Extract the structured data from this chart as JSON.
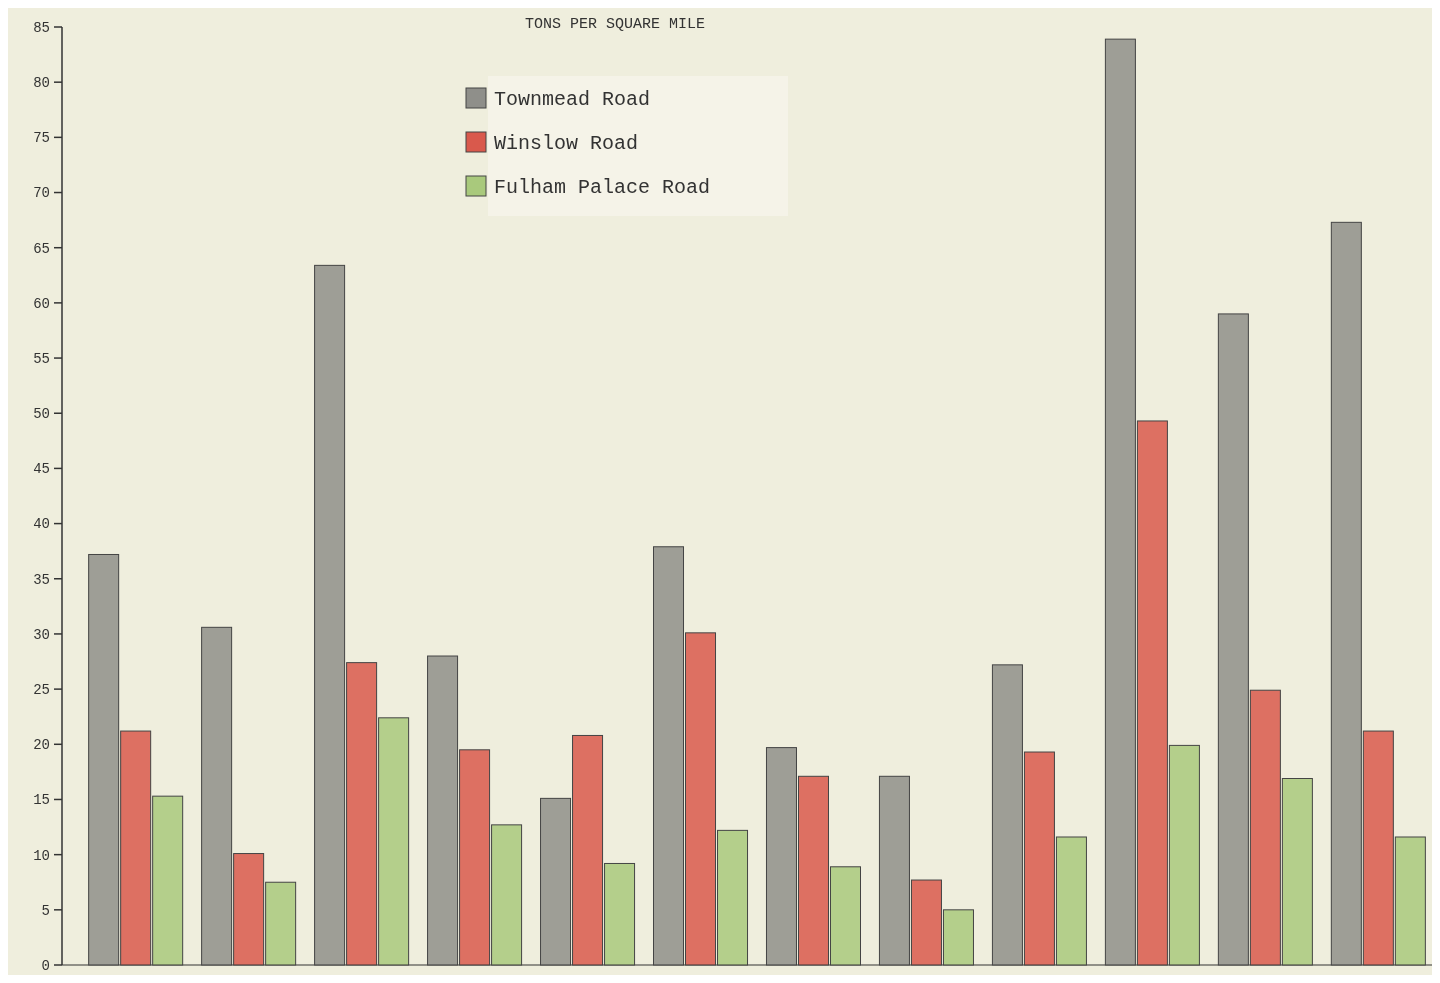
{
  "chart_data": {
    "type": "bar",
    "title": "TONS PER SQUARE MILE",
    "categories": [
      null,
      null,
      null,
      null,
      null,
      null,
      null,
      null,
      null,
      null,
      null,
      null
    ],
    "series": [
      {
        "name": "Townmead Road",
        "color": "#8f8f8a",
        "values": [
          37.2,
          30.6,
          63.4,
          28,
          15.1,
          37.9,
          19.7,
          17.1,
          27.2,
          83.9,
          59,
          67.3
        ]
      },
      {
        "name": "Winslow Road",
        "color": "#d9594c",
        "values": [
          21.2,
          10.1,
          27.4,
          19.5,
          20.8,
          30.1,
          17.1,
          7.7,
          19.3,
          49.3,
          24.9,
          21.2
        ]
      },
      {
        "name": "Fulham Palace Road",
        "color": "#a9c97c",
        "values": [
          15.3,
          7.5,
          22.4,
          12.7,
          9.2,
          12.2,
          8.9,
          5,
          11.6,
          19.9,
          16.9,
          11.6
        ]
      }
    ],
    "ylim": [
      0,
      85
    ],
    "yticks": [
      0,
      5,
      10,
      15,
      20,
      25,
      30,
      35,
      40,
      45,
      50,
      55,
      60,
      65,
      70,
      75,
      80,
      85
    ],
    "grid": false,
    "legend": "top"
  }
}
